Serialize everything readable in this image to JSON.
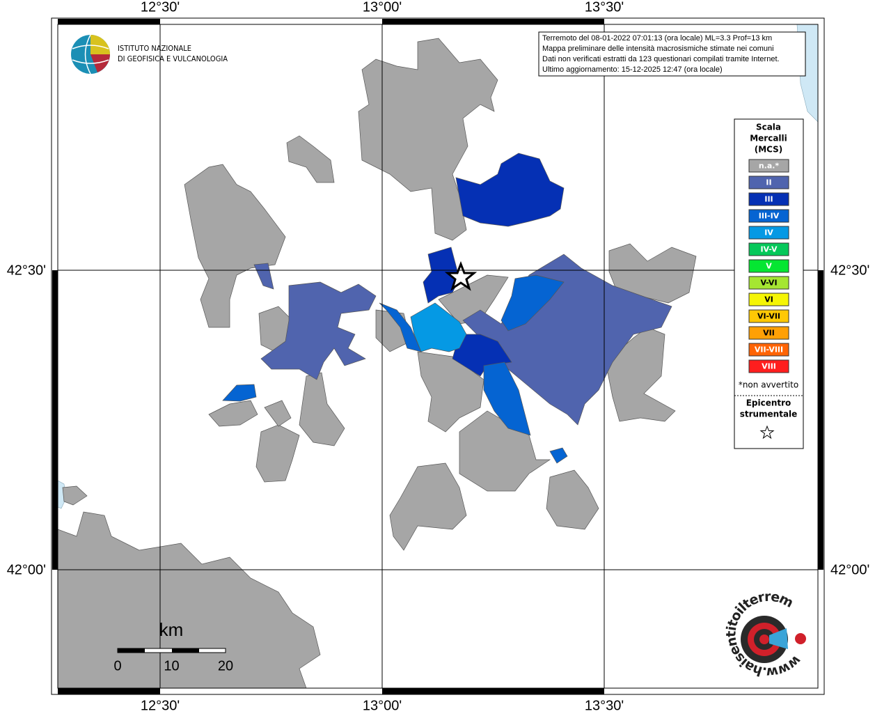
{
  "header": {
    "info_lines": [
      "Terremoto del 08-01-2022 07:01:13 (ora locale) ML=3.3 Prof=13 km",
      "Mappa preliminare delle intensità macrosismiche stimate nei comuni",
      "Dati non verificati estratti da 123 questionari compilati tramite Internet.",
      "Ultimo aggiornamento: 15-12-2025 12:47 (ora locale)"
    ]
  },
  "logo": {
    "lines": [
      "ISTITUTO NAZIONALE",
      "DI GEOFISICA E VULCANOLOGIA"
    ]
  },
  "axes": {
    "top": [
      "12°30'",
      "13°00'",
      "13°30'"
    ],
    "bottom": [
      "12°30'",
      "13°00'",
      "13°30'"
    ],
    "left": [
      "42°30'",
      "42°00'"
    ],
    "right": [
      "42°30'",
      "42°00'"
    ]
  },
  "legend": {
    "title": [
      "Scala",
      "Mercalli",
      "(MCS)"
    ],
    "items": [
      {
        "label": "n.a.*",
        "color": "#a6a6a6"
      },
      {
        "label": "II",
        "color": "#5064ae"
      },
      {
        "label": "III",
        "color": "#0530b4"
      },
      {
        "label": "III-IV",
        "color": "#0564d2"
      },
      {
        "label": "IV",
        "color": "#0599e4"
      },
      {
        "label": "IV-V",
        "color": "#05c85a"
      },
      {
        "label": "V",
        "color": "#05e632"
      },
      {
        "label": "V-VI",
        "color": "#a5e632"
      },
      {
        "label": "VI",
        "color": "#f5f505"
      },
      {
        "label": "VI-VII",
        "color": "#ffc805"
      },
      {
        "label": "VII",
        "color": "#ffa005"
      },
      {
        "label": "VII-VIII",
        "color": "#ff6405"
      },
      {
        "label": "VIII",
        "color": "#ff1e1e"
      }
    ],
    "note": "*non avvertito",
    "epicenter": [
      "Epicentro",
      "strumentale"
    ]
  },
  "scale_bar": {
    "unit": "km",
    "ticks": [
      0,
      10,
      20
    ]
  },
  "site_logo": {
    "url": "www.haisentitoilterremoto.it"
  }
}
